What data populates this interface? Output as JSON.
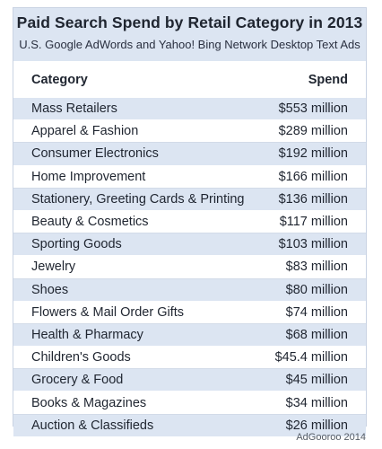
{
  "chart_data": {
    "type": "table",
    "title": "Paid Search Spend by Retail Category in 2013",
    "subtitle": "U.S. Google AdWords and Yahoo! Bing Network Desktop Text Ads",
    "columns": [
      "Category",
      "Spend"
    ],
    "rows": [
      {
        "category": "Mass Retailers",
        "spend": "$553 million"
      },
      {
        "category": "Apparel & Fashion",
        "spend": "$289 million"
      },
      {
        "category": "Consumer Electronics",
        "spend": "$192 million"
      },
      {
        "category": "Home Improvement",
        "spend": "$166 million"
      },
      {
        "category": "Stationery, Greeting Cards & Printing",
        "spend": "$136 million"
      },
      {
        "category": "Beauty & Cosmetics",
        "spend": "$117 million"
      },
      {
        "category": "Sporting Goods",
        "spend": "$103 million"
      },
      {
        "category": "Jewelry",
        "spend": "$83 million"
      },
      {
        "category": "Shoes",
        "spend": "$80 million"
      },
      {
        "category": "Flowers & Mail Order Gifts",
        "spend": "$74 million"
      },
      {
        "category": "Health & Pharmacy",
        "spend": "$68 million"
      },
      {
        "category": "Children's Goods",
        "spend": "$45.4 million"
      },
      {
        "category": "Grocery & Food",
        "spend": "$45 million"
      },
      {
        "category": "Books & Magazines",
        "spend": "$34 million"
      },
      {
        "category": "Auction & Classifieds",
        "spend": "$26 million"
      }
    ]
  },
  "footer": "AdGooroo 2014",
  "colors": {
    "band": "#dce5f2",
    "border": "#c9d3e3",
    "text": "#1f2530"
  }
}
